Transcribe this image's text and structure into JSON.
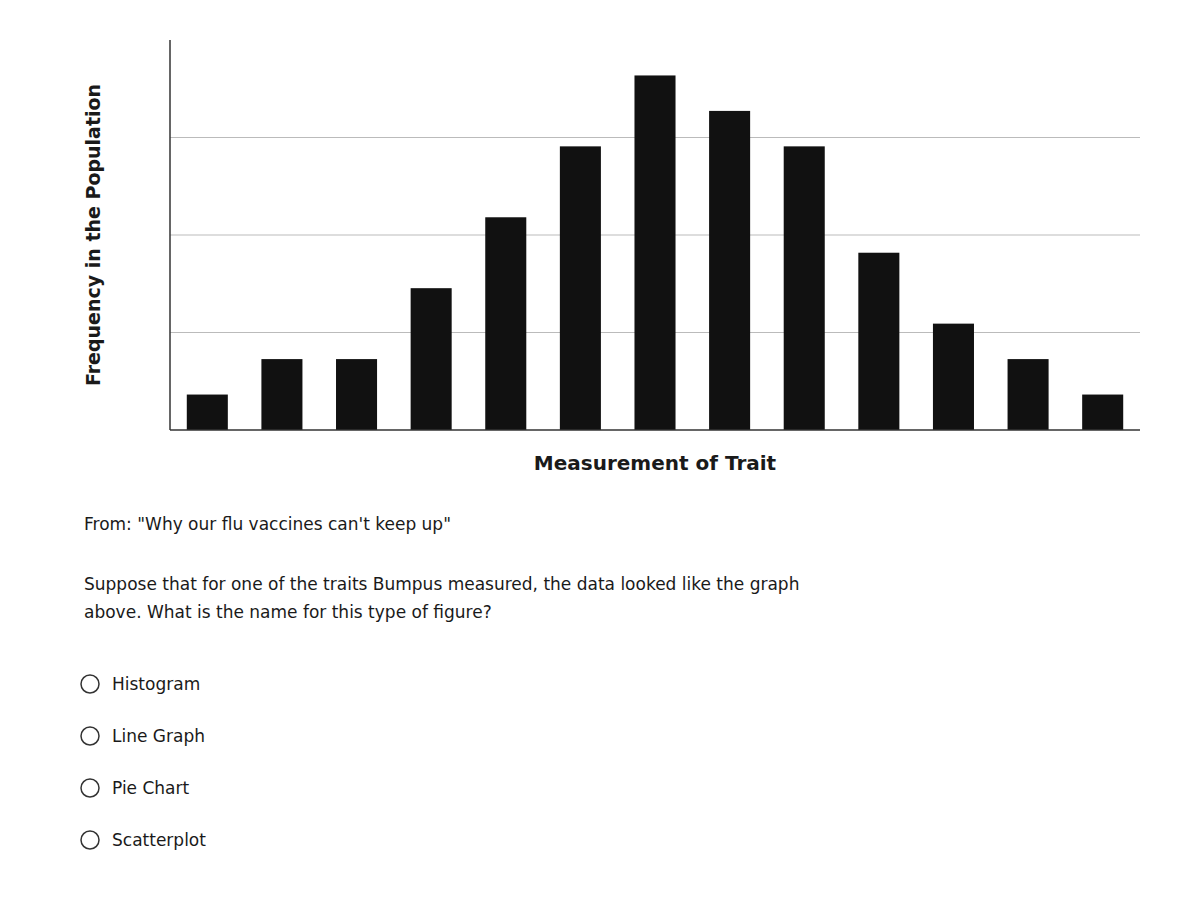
{
  "chart_data": {
    "type": "bar",
    "categories": [
      null,
      null,
      null,
      null,
      null,
      null,
      null,
      null,
      null,
      null,
      null,
      null,
      null
    ],
    "values": [
      1,
      2,
      2,
      4,
      6,
      8,
      10,
      9,
      8,
      5,
      3,
      2,
      1
    ],
    "color": "#111111",
    "xlabel": "Measurement of Trait",
    "ylabel": "Frequency in the Population",
    "ylim": [
      0,
      11
    ],
    "yticks": [
      2.75,
      5.5,
      8.25
    ],
    "grid": true,
    "tick_labels": false,
    "annotations": [
      "From:  \"Why our flu vaccines can't keep up\"",
      "Suppose that for one of the traits Bumpus measured, the data looked like the graph",
      "above.  What is the name for this type of figure?",
      "Histogram",
      "Line Graph",
      "Pie Chart",
      "Scatterplot"
    ]
  }
}
